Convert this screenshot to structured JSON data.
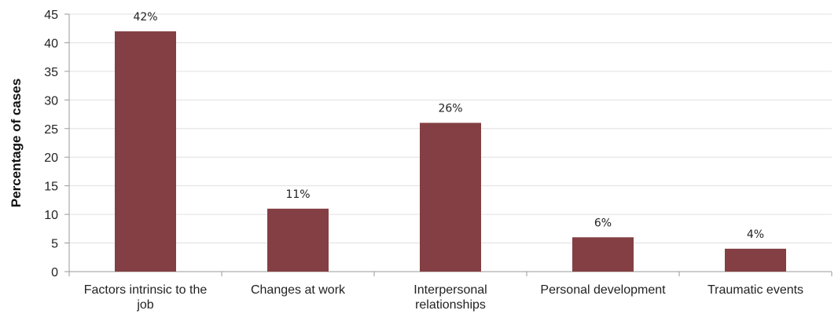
{
  "chart_data": {
    "type": "bar",
    "categories": [
      [
        "Factors intrinsic to the",
        "job"
      ],
      [
        "Changes at work"
      ],
      [
        "Interpersonal",
        "relationships"
      ],
      [
        "Personal development"
      ],
      [
        "Traumatic events"
      ]
    ],
    "values": [
      42,
      11,
      26,
      6,
      4
    ],
    "data_labels": [
      "42%",
      "11%",
      "26%",
      "6%",
      "4%"
    ],
    "ylabel": "Percentage of cases",
    "ylim": [
      0,
      45
    ],
    "yticks": [
      0,
      5,
      10,
      15,
      20,
      25,
      30,
      35,
      40,
      45
    ],
    "grid": true,
    "bar_color": "#833f43",
    "grid_color": "#e0e0e0",
    "axis_color": "#999999"
  }
}
